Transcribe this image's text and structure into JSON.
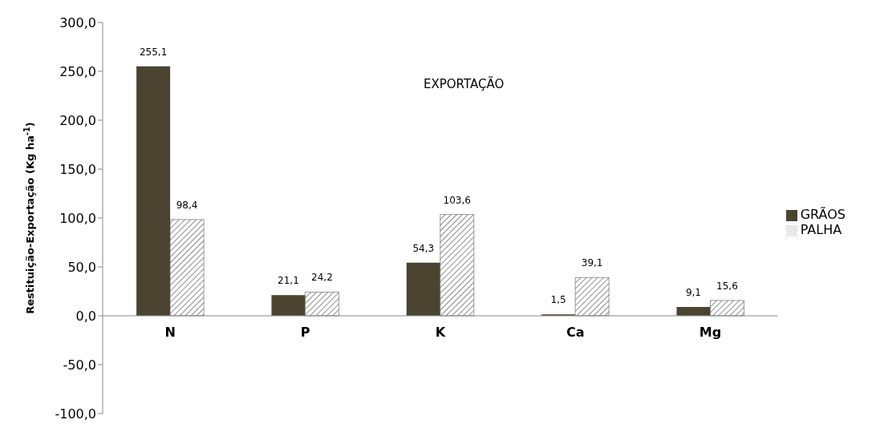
{
  "chart_data": {
    "type": "bar",
    "ylabel": "Restituição-Exportação (Kg ha$^{-1}$)",
    "annotations": [
      "EXPORTAÇÃO"
    ],
    "categories": [
      "N",
      "P",
      "K",
      "Ca",
      "Mg"
    ],
    "series": [
      {
        "name": "GRÃOS",
        "color": "#4a4431",
        "values": [
          255.1,
          21.1,
          54.3,
          1.5,
          9.1
        ],
        "value_labels": [
          "255,1",
          "21,1",
          "54,3",
          "1,5",
          "9,1"
        ]
      },
      {
        "name": "PALHA",
        "color": "#595959",
        "values": [
          98.4,
          24.2,
          103.6,
          39.1,
          15.6
        ],
        "value_labels": [
          "98,4",
          "24,2",
          "103,6",
          "39,1",
          "15,6"
        ]
      }
    ],
    "ylim": [
      -100,
      300
    ],
    "yticks": [
      {
        "value": -100,
        "label": "-100,0"
      },
      {
        "value": -50,
        "label": "-50,0"
      },
      {
        "value": 0,
        "label": "0,0"
      },
      {
        "value": 50,
        "label": "50,0"
      },
      {
        "value": 100,
        "label": "100,0"
      },
      {
        "value": 150,
        "label": "150,0"
      },
      {
        "value": 200,
        "label": "200,0"
      },
      {
        "value": 250,
        "label": "250,0"
      },
      {
        "value": 300,
        "label": "300,0"
      }
    ],
    "grid": false,
    "legend": "right"
  }
}
